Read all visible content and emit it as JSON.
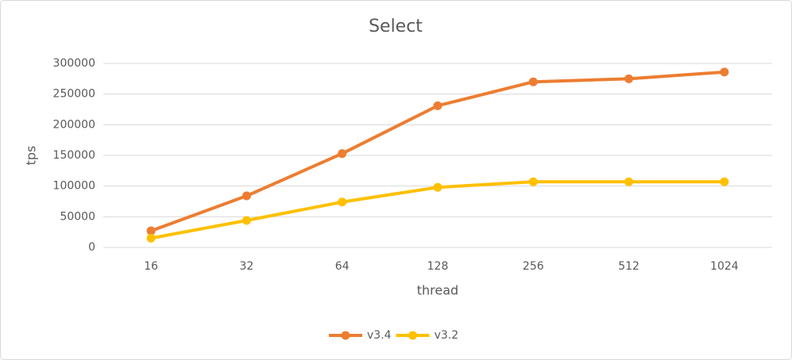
{
  "chart_data": {
    "type": "line",
    "title": "Select",
    "x_label": "thread",
    "y_label": "tps",
    "categories": [
      "16",
      "32",
      "64",
      "128",
      "256",
      "512",
      "1024"
    ],
    "series": [
      {
        "name": "v3.4",
        "color": "#ed7d31",
        "values": [
          27000,
          84000,
          153000,
          231000,
          270000,
          275000,
          286000
        ]
      },
      {
        "name": "v3.2",
        "color": "#ffc000",
        "values": [
          15000,
          44000,
          74000,
          98000,
          107000,
          107000,
          107000
        ]
      }
    ],
    "ylim": [
      0,
      300000
    ],
    "yticks": [
      0,
      50000,
      100000,
      150000,
      200000,
      250000,
      300000
    ],
    "grid": true,
    "legend": "bottom"
  }
}
